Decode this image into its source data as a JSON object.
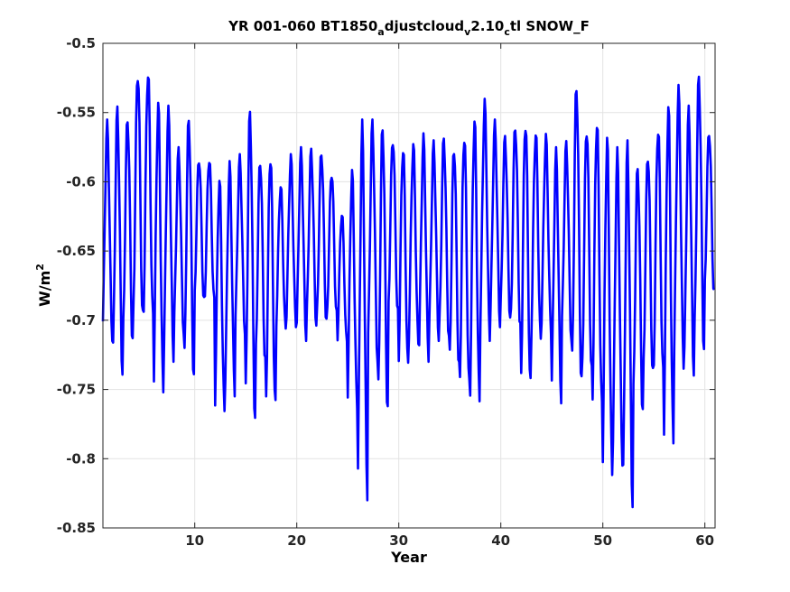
{
  "chart_data": {
    "type": "line",
    "title": {
      "segments": [
        {
          "text": "YR 001-060 BT1850",
          "sub": false
        },
        {
          "text": "a",
          "sub": true
        },
        {
          "text": "djustcloud",
          "sub": false
        },
        {
          "text": "v",
          "sub": true
        },
        {
          "text": "2.10",
          "sub": false
        },
        {
          "text": "c",
          "sub": true
        },
        {
          "text": "tl SNOW_F",
          "sub": false
        }
      ]
    },
    "xlabel": "Year",
    "ylabel": {
      "base": "W/m",
      "sup": "2"
    },
    "xlim": [
      1,
      61
    ],
    "ylim": [
      -0.85,
      -0.5
    ],
    "xticks": [
      10,
      20,
      30,
      40,
      50,
      60
    ],
    "yticks": [
      -0.85,
      -0.8,
      -0.75,
      -0.7,
      -0.65,
      -0.6,
      -0.55,
      -0.5
    ],
    "ytick_labels": [
      "-0.85",
      "-0.8",
      "-0.75",
      "-0.7",
      "-0.65",
      "-0.6",
      "-0.55",
      "-0.5"
    ],
    "grid": true,
    "series": [
      {
        "color": "#0000ff",
        "points_per_year": 12,
        "peaks": [
          -0.555,
          -0.545,
          -0.55,
          -0.515,
          -0.515,
          -0.54,
          -0.545,
          -0.575,
          -0.55,
          -0.58,
          -0.58,
          -0.595,
          -0.585,
          -0.58,
          -0.545,
          -0.58,
          -0.575,
          -0.6,
          -0.58,
          -0.575,
          -0.575,
          -0.575,
          -0.59,
          -0.62,
          -0.59,
          -0.555,
          -0.555,
          -0.555,
          -0.565,
          -0.57,
          -0.57,
          -0.565,
          -0.57,
          -0.565,
          -0.57,
          -0.56,
          -0.55,
          -0.54,
          -0.555,
          -0.565,
          -0.555,
          -0.55,
          -0.56,
          -0.565,
          -0.575,
          -0.57,
          -0.525,
          -0.555,
          -0.55,
          -0.565,
          -0.575,
          -0.57,
          -0.585,
          -0.575,
          -0.555,
          -0.54,
          -0.53,
          -0.545,
          -0.52,
          -0.56
        ],
        "troughs": [
          -0.715,
          -0.74,
          -0.72,
          -0.705,
          -0.705,
          -0.755,
          -0.73,
          -0.71,
          -0.745,
          -0.69,
          -0.69,
          -0.77,
          -0.755,
          -0.71,
          -0.775,
          -0.735,
          -0.77,
          -0.71,
          -0.705,
          -0.715,
          -0.705,
          -0.705,
          -0.7,
          -0.72,
          -0.765,
          -0.83,
          -0.73,
          -0.77,
          -0.7,
          -0.74,
          -0.72,
          -0.73,
          -0.715,
          -0.715,
          -0.74,
          -0.755,
          -0.765,
          -0.715,
          -0.705,
          -0.7,
          -0.71,
          -0.755,
          -0.72,
          -0.71,
          -0.76,
          -0.715,
          -0.75,
          -0.745,
          -0.77,
          -0.815,
          -0.805,
          -0.835,
          -0.77,
          -0.745,
          -0.745,
          -0.795,
          -0.735,
          -0.74,
          -0.725,
          -0.685
        ]
      }
    ]
  }
}
